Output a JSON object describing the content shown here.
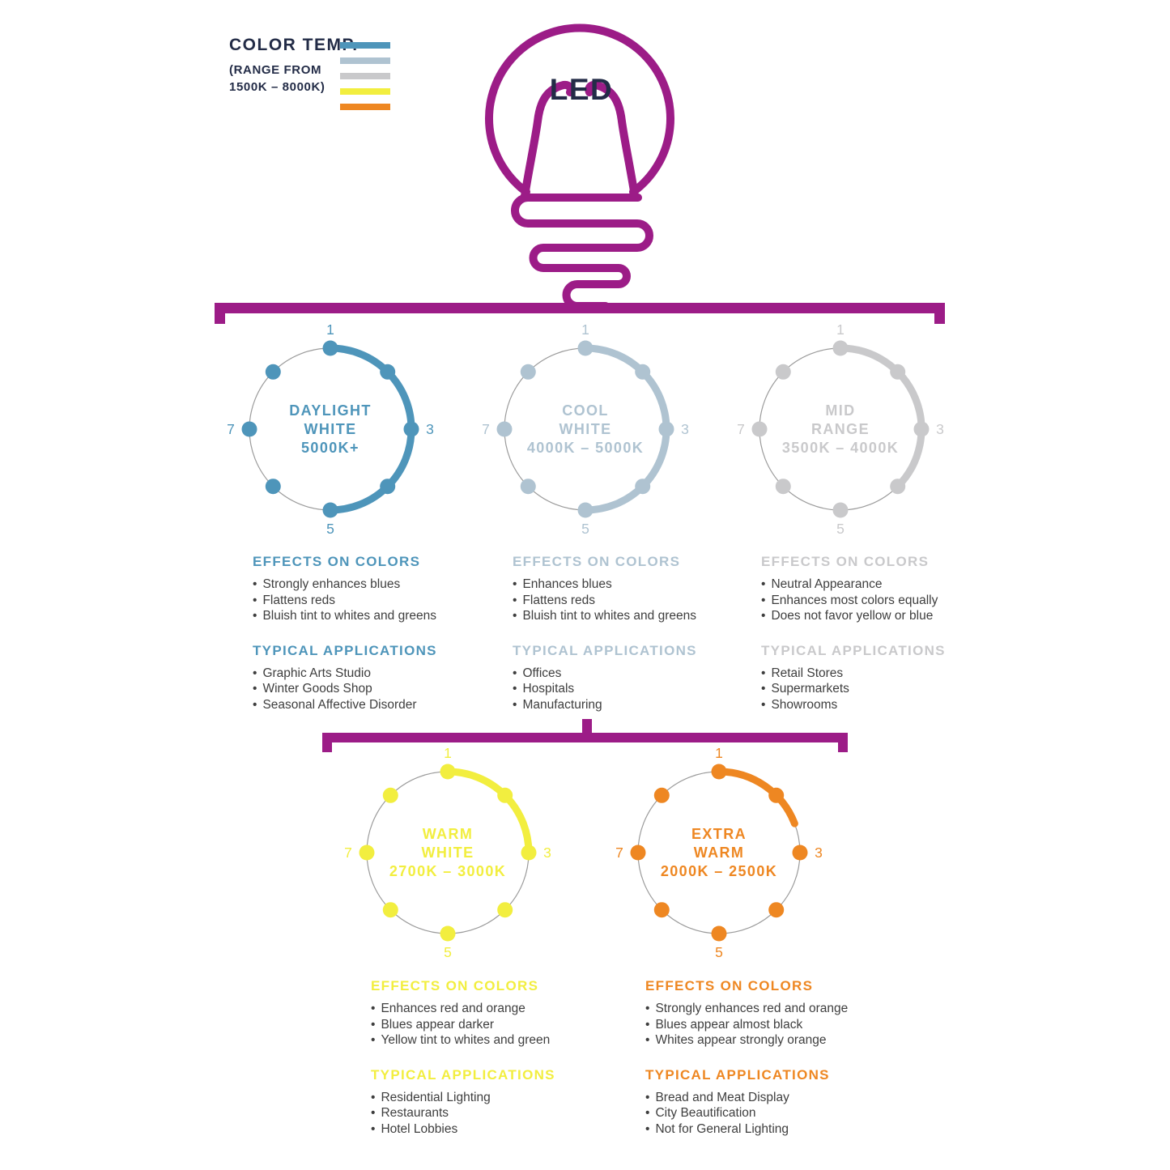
{
  "colors": {
    "magenta": "#9C1C87",
    "navy": "#232C47",
    "body_text": "#3E3E3E",
    "thin_ring": "#9B9B9B"
  },
  "legend": {
    "title": "COLOR TEMP.",
    "subtitle_line1": "(RANGE FROM",
    "subtitle_line2": "1500K – 8000K)",
    "swatches": [
      {
        "name": "daylight-white",
        "color": "#4E95BA"
      },
      {
        "name": "cool-white",
        "color": "#AFC3D1"
      },
      {
        "name": "mid-range",
        "color": "#C9C9CB"
      },
      {
        "name": "warm-white",
        "color": "#F2EE3F"
      },
      {
        "name": "extra-warm",
        "color": "#EE8722"
      }
    ]
  },
  "bulb": {
    "label": "LED",
    "outline_color": "#9C1C87",
    "label_color": "#232C47"
  },
  "circles": [
    {
      "id": "daylight-white",
      "color": "#4E95BA",
      "name_lines": [
        "DAYLIGHT",
        "WHITE"
      ],
      "temp": "5000K+",
      "scale_labels": [
        "1",
        "3",
        "5",
        "7"
      ],
      "arc_start_deg": 0,
      "arc_end_deg": 180,
      "effects_title": "EFFECTS ON COLORS",
      "effects": [
        "Strongly enhances blues",
        "Flattens reds",
        "Bluish tint to whites and greens"
      ],
      "applications_title": "TYPICAL APPLICATIONS",
      "applications": [
        "Graphic Arts Studio",
        "Winter Goods Shop",
        "Seasonal Affective Disorder"
      ]
    },
    {
      "id": "cool-white",
      "color": "#AFC3D1",
      "name_lines": [
        "COOL",
        "WHITE"
      ],
      "temp": "4000K – 5000K",
      "scale_labels": [
        "1",
        "3",
        "5",
        "7"
      ],
      "arc_start_deg": 0,
      "arc_end_deg": 180,
      "effects_title": "EFFECTS ON COLORS",
      "effects": [
        "Enhances blues",
        "Flattens reds",
        "Bluish tint to whites and greens"
      ],
      "applications_title": "TYPICAL APPLICATIONS",
      "applications": [
        "Offices",
        "Hospitals",
        "Manufacturing"
      ]
    },
    {
      "id": "mid-range",
      "color": "#C9C9CB",
      "name_lines": [
        "MID",
        "RANGE"
      ],
      "temp": "3500K – 4000K",
      "scale_labels": [
        "1",
        "3",
        "5",
        "7"
      ],
      "arc_start_deg": 0,
      "arc_end_deg": 135,
      "effects_title": "EFFECTS ON COLORS",
      "effects": [
        "Neutral Appearance",
        "Enhances most colors equally",
        "Does not favor yellow or blue"
      ],
      "applications_title": "TYPICAL APPLICATIONS",
      "applications": [
        "Retail Stores",
        "Supermarkets",
        "Showrooms"
      ]
    },
    {
      "id": "warm-white",
      "color": "#F2EE3F",
      "name_lines": [
        "WARM",
        "WHITE"
      ],
      "temp": "2700K – 3000K",
      "scale_labels": [
        "1",
        "3",
        "5",
        "7"
      ],
      "arc_start_deg": 0,
      "arc_end_deg": 90,
      "effects_title": "EFFECTS ON COLORS",
      "effects": [
        "Enhances red and orange",
        "Blues appear darker",
        "Yellow tint to whites and green"
      ],
      "applications_title": "TYPICAL APPLICATIONS",
      "applications": [
        "Residential Lighting",
        "Restaurants",
        "Hotel Lobbies"
      ]
    },
    {
      "id": "extra-warm",
      "color": "#EE8722",
      "name_lines": [
        "EXTRA",
        "WARM"
      ],
      "temp": "2000K – 2500K",
      "scale_labels": [
        "1",
        "3",
        "5",
        "7"
      ],
      "arc_start_deg": 0,
      "arc_end_deg": 69,
      "effects_title": "EFFECTS ON COLORS",
      "effects": [
        "Strongly enhances red and orange",
        "Blues appear almost black",
        "Whites appear strongly orange"
      ],
      "applications_title": "TYPICAL APPLICATIONS",
      "applications": [
        "Bread and Meat Display",
        "City Beautification",
        "Not for General Lighting"
      ]
    }
  ]
}
